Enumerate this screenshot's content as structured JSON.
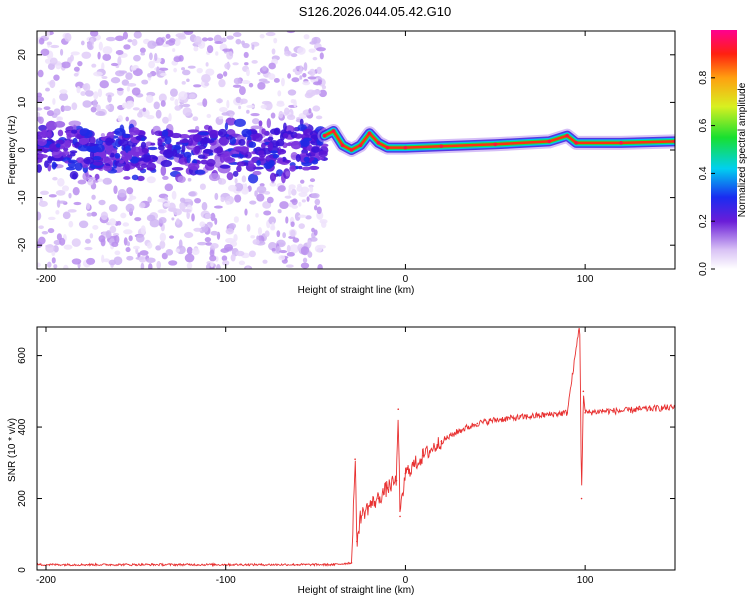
{
  "title": "S126.2026.044.05.42.G10",
  "colors": {
    "snr_line": "#e83030",
    "axis": "#000000"
  },
  "chart_data": [
    {
      "type": "heatmap",
      "title": "S126.2026.044.05.42.G10",
      "xlabel": "Height of straight line (km)",
      "ylabel": "Frequency (Hz)",
      "xlim": [
        -205,
        150
      ],
      "ylim": [
        -25,
        25
      ],
      "xticks": [
        -200,
        -100,
        0,
        100
      ],
      "yticks": [
        -20,
        -10,
        0,
        10,
        20
      ],
      "noise_region": {
        "x": [
          -205,
          -45
        ],
        "freq_band": [
          -7,
          7
        ]
      },
      "ridge": [
        {
          "x": -45,
          "f": 3
        },
        {
          "x": -40,
          "f": 4
        },
        {
          "x": -35,
          "f": 1
        },
        {
          "x": -30,
          "f": 0
        },
        {
          "x": -25,
          "f": 1
        },
        {
          "x": -20,
          "f": 3.5
        },
        {
          "x": -15,
          "f": 1.5
        },
        {
          "x": -10,
          "f": 0.5
        },
        {
          "x": 0,
          "f": 0.5
        },
        {
          "x": 20,
          "f": 0.8
        },
        {
          "x": 50,
          "f": 1.2
        },
        {
          "x": 80,
          "f": 1.8
        },
        {
          "x": 90,
          "f": 3
        },
        {
          "x": 95,
          "f": 1.5
        },
        {
          "x": 120,
          "f": 1.5
        },
        {
          "x": 150,
          "f": 1.8
        }
      ],
      "colorbar": {
        "label": "Normalized spectral amplitude",
        "ticks": [
          0.0,
          0.2,
          0.4,
          0.6,
          0.8
        ],
        "tick_labels": [
          "0.0",
          "0.2",
          "0.4",
          "0.6",
          "0.8"
        ],
        "range": [
          0,
          1
        ]
      }
    },
    {
      "type": "line",
      "xlabel": "Height of straight line (km)",
      "ylabel": "SNR (10 * v/v)",
      "xlim": [
        -205,
        150
      ],
      "ylim": [
        0,
        680
      ],
      "xticks": [
        -200,
        -100,
        0,
        100
      ],
      "yticks": [
        0,
        200,
        400,
        600
      ],
      "series": [
        {
          "name": "SNR",
          "x": [
            -205,
            -180,
            -150,
            -120,
            -100,
            -80,
            -60,
            -40,
            -30,
            -28,
            -27,
            -25,
            -20,
            -15,
            -10,
            -5,
            -4,
            -3,
            0,
            10,
            20,
            30,
            40,
            50,
            60,
            70,
            80,
            90,
            97,
            98,
            99,
            100,
            110,
            120,
            130,
            150
          ],
          "y": [
            15,
            15,
            15,
            15,
            15,
            15,
            15,
            15,
            20,
            310,
            80,
            150,
            180,
            200,
            230,
            250,
            450,
            150,
            270,
            320,
            360,
            390,
            410,
            420,
            425,
            430,
            435,
            440,
            690,
            200,
            500,
            440,
            445,
            445,
            450,
            455
          ]
        }
      ]
    }
  ]
}
